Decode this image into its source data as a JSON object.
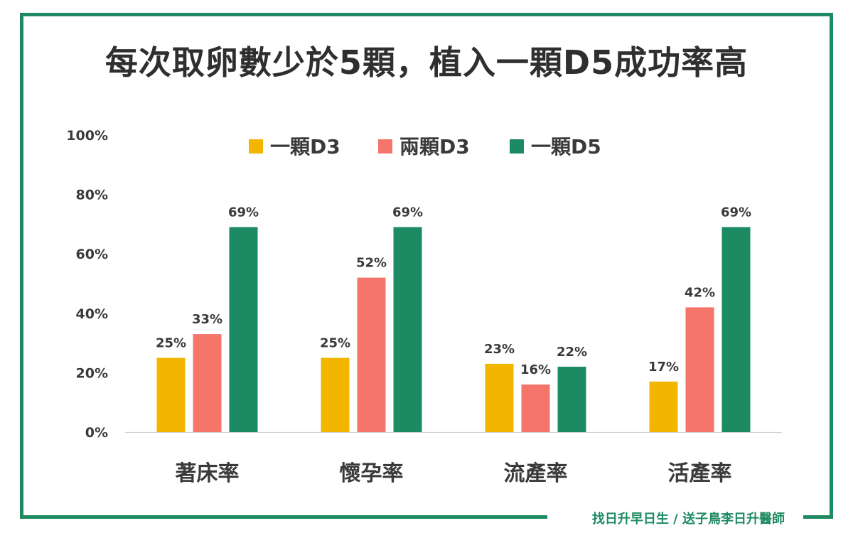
{
  "title": "每次取卵數少於5顆，植入一顆D5成功率高",
  "footer": "找日升早日生 / 送子鳥李日升醫師",
  "colors": {
    "border": "#1e8a62",
    "series": [
      "#f2b500",
      "#f5756b",
      "#1c8a63"
    ],
    "text": "#3a3a3a"
  },
  "chart_data": {
    "type": "bar",
    "categories": [
      "著床率",
      "懷孕率",
      "流產率",
      "活產率"
    ],
    "series": [
      {
        "name": "一顆D3",
        "values": [
          25,
          25,
          23,
          17
        ]
      },
      {
        "name": "兩顆D3",
        "values": [
          33,
          52,
          16,
          42
        ]
      },
      {
        "name": "一顆D5",
        "values": [
          69,
          69,
          22,
          69
        ]
      }
    ],
    "data_labels": [
      [
        "25%",
        "25%",
        "23%",
        "17%"
      ],
      [
        "33%",
        "52%",
        "16%",
        "42%"
      ],
      [
        "69%",
        "69%",
        "22%",
        "69%"
      ]
    ],
    "yticks": [
      "0%",
      "20%",
      "40%",
      "60%",
      "80%",
      "100%"
    ],
    "ylim": [
      0,
      100
    ],
    "grid": false,
    "legend_position": "top-center",
    "xlabel": "",
    "ylabel": ""
  }
}
